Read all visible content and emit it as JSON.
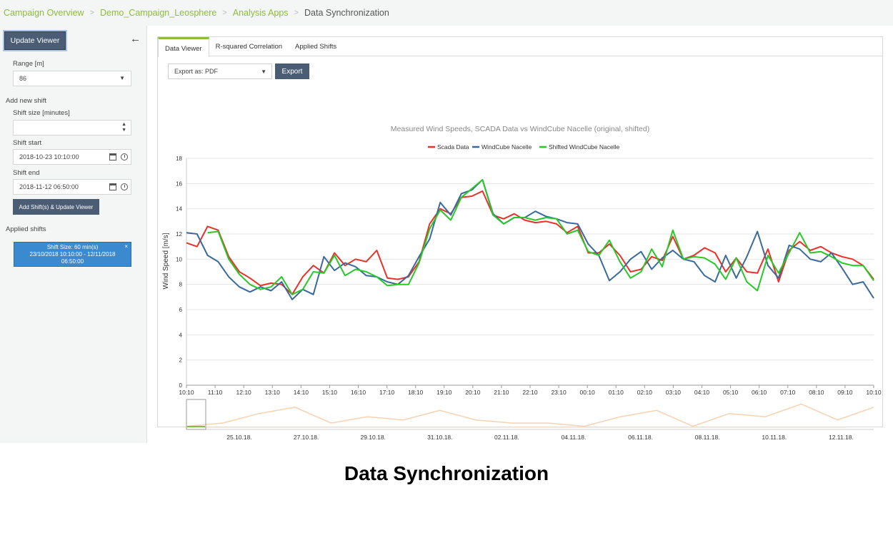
{
  "breadcrumb": {
    "items": [
      "Campaign Overview",
      "Demo_Campaign_Leosphere",
      "Analysis Apps"
    ],
    "current": "Data Synchronization"
  },
  "sidebar": {
    "update_viewer_label": "Update Viewer",
    "range_label": "Range [m]",
    "range_value": "86",
    "add_new_shift_label": "Add new shift",
    "shift_size_label": "Shift size [minutes]",
    "shift_size_value": "",
    "shift_start_label": "Shift start",
    "shift_start_value": "2018-10-23 10:10:00",
    "shift_end_label": "Shift end",
    "shift_end_value": "2018-11-12 06:50:00",
    "add_shift_button": "Add Shift(s) & Update Viewer",
    "applied_shifts_label": "Applied shifts",
    "applied_shift_line1": "Shift Size: 60 min(s)",
    "applied_shift_line2": "23/10/2018 10:10:00 - 12/11/2018",
    "applied_shift_line3": "06:50:00",
    "remove_symbol": "×"
  },
  "tabs": [
    {
      "label": "Data Viewer",
      "active": true
    },
    {
      "label": "R-squared Correlation",
      "active": false
    },
    {
      "label": "Applied Shifts",
      "active": false
    }
  ],
  "toolbar": {
    "export_select_value": "Export as: PDF",
    "export_button": "Export"
  },
  "colors": {
    "scada": "#e8312a",
    "windcube": "#3a6a9b",
    "shifted": "#27c927",
    "accent": "#8bbd3c",
    "button": "#4a5d75"
  },
  "chart_data": {
    "type": "line",
    "title": "Measured Wind Speeds, SCADA Data vs WindCube Nacelle (original, shifted)",
    "ylabel": "Wind Speed [m/s]",
    "xlabel": "",
    "ylim": [
      0,
      18
    ],
    "yticks": [
      0,
      2,
      4,
      6,
      8,
      10,
      12,
      14,
      16,
      18
    ],
    "x_tick_labels": [
      "10:10",
      "11:10",
      "12:10",
      "13:10",
      "14:10",
      "15:10",
      "16:10",
      "17:10",
      "18:10",
      "19:10",
      "20:10",
      "21:10",
      "22:10",
      "23:10",
      "00:10",
      "01:10",
      "02:10",
      "03:10",
      "04:10",
      "05:10",
      "06:10",
      "07:10",
      "08:10",
      "09:10",
      "10:10"
    ],
    "legend_position": "top-center",
    "grid": true,
    "series": [
      {
        "name": "Scada Data",
        "color_key": "scada",
        "values": [
          11.3,
          11.0,
          12.6,
          12.3,
          10.2,
          9.0,
          8.5,
          7.9,
          8.1,
          8.0,
          7.2,
          8.6,
          9.5,
          8.9,
          10.5,
          9.5,
          10.0,
          9.8,
          10.7,
          8.5,
          8.4,
          8.6,
          9.8,
          12.8,
          14.0,
          13.6,
          14.9,
          15.0,
          15.4,
          13.5,
          13.2,
          13.6,
          13.1,
          12.9,
          13.0,
          12.8,
          12.1,
          12.6,
          10.5,
          10.5,
          11.2,
          10.3,
          9.0,
          9.2,
          10.2,
          9.9,
          11.8,
          10.0,
          10.3,
          10.9,
          10.5,
          9.0,
          10.1,
          9.0,
          8.9,
          10.8,
          8.2,
          10.7,
          11.4,
          10.7,
          11.0,
          10.5,
          10.2,
          10.0,
          9.5,
          8.4
        ]
      },
      {
        "name": "WindCube Nacelle",
        "color_key": "windcube",
        "values": [
          12.1,
          12.0,
          10.3,
          9.8,
          8.6,
          7.8,
          7.4,
          7.8,
          7.5,
          8.2,
          6.8,
          7.6,
          7.2,
          10.2,
          9.1,
          9.7,
          9.4,
          8.7,
          8.6,
          8.2,
          8.0,
          8.7,
          10.2,
          11.6,
          14.5,
          13.5,
          15.2,
          15.5,
          16.3,
          13.6,
          12.8,
          13.3,
          13.3,
          13.8,
          13.4,
          13.2,
          12.9,
          12.8,
          11.2,
          10.3,
          8.3,
          9.0,
          10.0,
          10.6,
          9.2,
          10.1,
          10.7,
          10.0,
          9.8,
          8.7,
          8.2,
          10.3,
          8.5,
          10.2,
          12.2,
          9.5,
          8.5,
          11.1,
          10.8,
          10.0,
          9.8,
          10.5,
          9.3,
          8.0,
          8.2,
          6.9
        ]
      },
      {
        "name": "Shifted WindCube Nacelle",
        "color_key": "shifted",
        "values": [
          null,
          null,
          12.1,
          12.2,
          10.0,
          8.8,
          8.0,
          7.6,
          7.8,
          8.6,
          7.2,
          7.6,
          9.0,
          8.9,
          10.3,
          8.7,
          9.2,
          9.0,
          8.6,
          7.9,
          8.0,
          8.0,
          9.7,
          12.4,
          13.9,
          13.1,
          14.9,
          15.6,
          16.3,
          13.5,
          12.8,
          13.3,
          13.3,
          13.1,
          13.3,
          13.2,
          12.0,
          12.3,
          10.6,
          10.3,
          11.5,
          9.8,
          8.5,
          9.0,
          10.8,
          9.4,
          12.3,
          10.0,
          10.2,
          10.1,
          9.6,
          8.4,
          10.1,
          8.2,
          7.5,
          10.3,
          8.9,
          10.5,
          12.1,
          10.5,
          10.6,
          10.2,
          9.7,
          9.5,
          9.5,
          8.3
        ]
      }
    ],
    "navigator": {
      "date_labels": [
        "25.10.18.",
        "27.10.18.",
        "29.10.18.",
        "31.10.18.",
        "02.11.18.",
        "04.11.18.",
        "06.11.18.",
        "08.11.18.",
        "10.11.18.",
        "12.11.18."
      ],
      "values": [
        8,
        9,
        12,
        14,
        9,
        11,
        10,
        13,
        10,
        9,
        9,
        8,
        11,
        13,
        8,
        12,
        11,
        15,
        10,
        14
      ]
    }
  }
}
